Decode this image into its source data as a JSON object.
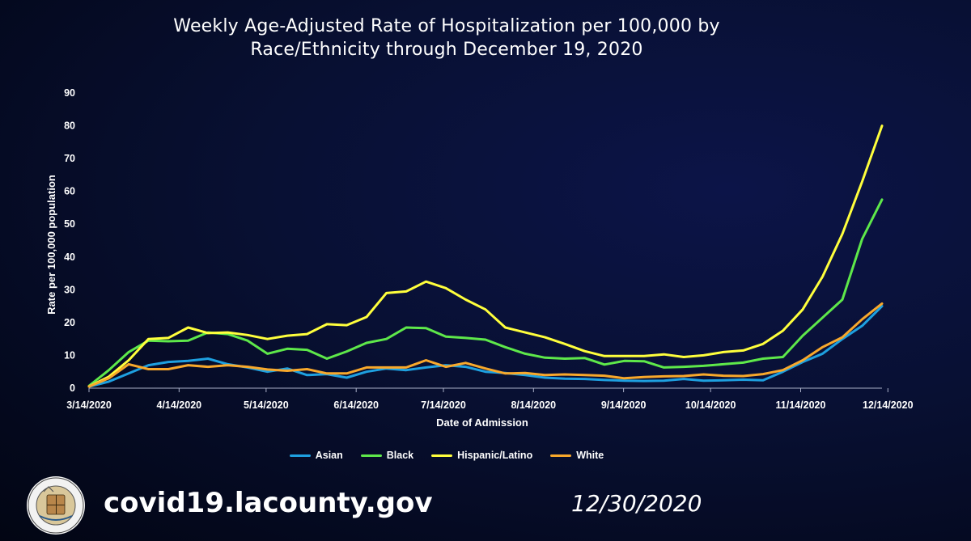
{
  "title_line1": "Weekly Age-Adjusted Rate of Hospitalization per 100,000 by",
  "title_line2": "Race/Ethnicity through December 19, 2020",
  "footer": {
    "website": "covid19.lacounty.gov",
    "date": "12/30/2020",
    "seal_text": "COUNTY OF LOS ANGELES · CALIFORNIA"
  },
  "chart_data": {
    "type": "line",
    "xlabel": "Date of Admission",
    "ylabel": "Rate per 100,000 population",
    "ylim": [
      0,
      90
    ],
    "yticks": [
      0,
      10,
      20,
      30,
      40,
      50,
      60,
      70,
      80,
      90
    ],
    "xtick_labels": [
      "3/14/2020",
      "4/14/2020",
      "5/14/2020",
      "6/14/2020",
      "7/14/2020",
      "8/14/2020",
      "9/14/2020",
      "10/14/2020",
      "11/14/2020",
      "12/14/2020"
    ],
    "xtick_index": [
      0,
      4.43,
      8.71,
      13.14,
      17.43,
      21.86,
      26.29,
      30.57,
      35.0,
      39.29
    ],
    "x_points": 40,
    "grid": false,
    "legend_position": "bottom",
    "series": [
      {
        "name": "Asian",
        "color": "#1ea0e0",
        "values": [
          0.5,
          2,
          4.5,
          7,
          8,
          8.3,
          9,
          7.3,
          6.3,
          5,
          6,
          4,
          4.3,
          3.2,
          5,
          6,
          5.5,
          6.3,
          7,
          6.5,
          5,
          4.6,
          4,
          3.2,
          2.9,
          2.8,
          2.5,
          2.3,
          2.2,
          2.3,
          2.8,
          2.3,
          2.4,
          2.6,
          2.4,
          5,
          8,
          10.5,
          15,
          19
        ]
      },
      {
        "name": "Black",
        "color": "#5ee84a",
        "values": [
          0.7,
          5.5,
          11,
          14.5,
          14.3,
          14.5,
          17,
          16.5,
          14.5,
          10.5,
          12,
          11.7,
          9,
          11.2,
          13.8,
          15,
          18.5,
          18.3,
          15.7,
          15.3,
          14.8,
          12.5,
          10.5,
          9.3,
          9,
          9.2,
          7.2,
          8.3,
          8.2,
          6.3,
          6.5,
          6.8,
          7.3,
          7.8,
          9,
          9.5,
          16,
          21.5,
          27,
          45.5
        ]
      },
      {
        "name": "Hispanic/Latino",
        "color": "#ffff3c",
        "values": [
          0.5,
          3.5,
          8.5,
          15,
          15.3,
          18.5,
          16.8,
          17,
          16.2,
          15,
          16,
          16.5,
          19.5,
          19.2,
          21.7,
          29,
          29.5,
          32.5,
          30.5,
          27,
          24,
          18.5,
          17,
          15.5,
          13.5,
          11.3,
          9.8,
          9.8,
          9.8,
          10.3,
          9.5,
          10,
          11,
          11.5,
          13.5,
          17.5,
          24,
          34,
          47,
          63
        ]
      },
      {
        "name": "White",
        "color": "#f8a82b",
        "values": [
          0.5,
          3,
          7.3,
          5.8,
          5.8,
          7,
          6.5,
          7,
          6.5,
          5.7,
          5.3,
          5.8,
          4.5,
          4.5,
          6.3,
          6.3,
          6.3,
          8.5,
          6.5,
          7.7,
          6,
          4.5,
          4.6,
          4,
          4.2,
          4,
          3.8,
          3,
          3.4,
          3.6,
          3.7,
          4.2,
          3.8,
          3.7,
          4.3,
          5.5,
          8.5,
          12.5,
          15.5,
          21
        ]
      }
    ],
    "final_values": [
      25,
      57.5,
      80,
      25.8
    ]
  }
}
